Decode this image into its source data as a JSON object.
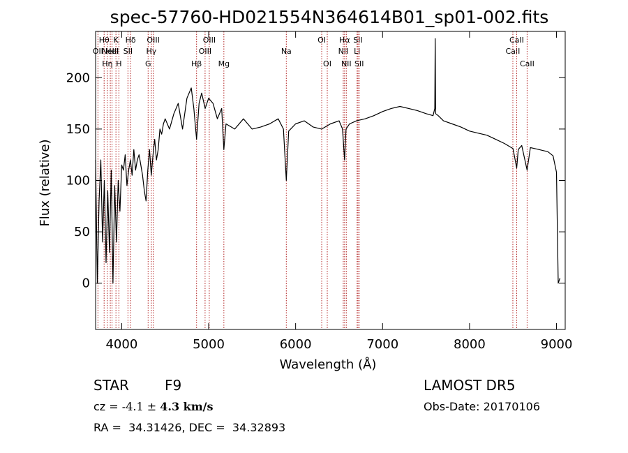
{
  "chart_data": {
    "type": "line",
    "title": "spec-57760-HD021554N364614B01_sp01-002.fits",
    "xlabel": "Wavelength (Å)",
    "ylabel": "Flux (relative)",
    "xlim": [
      3700,
      9100
    ],
    "ylim": [
      -45,
      245
    ],
    "xticks": [
      4000,
      5000,
      6000,
      7000,
      8000,
      9000
    ],
    "yticks": [
      0,
      50,
      100,
      150,
      200
    ],
    "grid": false,
    "line_color": "#000000",
    "marker_color": "#b22222",
    "series": [
      {
        "x": [
          3700,
          3720,
          3740,
          3760,
          3780,
          3800,
          3820,
          3840,
          3860,
          3880,
          3900,
          3920,
          3940,
          3960,
          3980,
          4000,
          4020,
          4040,
          4060,
          4080,
          4100,
          4120,
          4140,
          4160,
          4180,
          4200,
          4220,
          4240,
          4260,
          4280,
          4300,
          4320,
          4340,
          4360,
          4380,
          4400,
          4420,
          4440,
          4460,
          4480,
          4500,
          4550,
          4600,
          4650,
          4700,
          4750,
          4800,
          4830,
          4861,
          4890,
          4920,
          4960,
          5000,
          5050,
          5100,
          5150,
          5175,
          5200,
          5300,
          5400,
          5500,
          5600,
          5700,
          5800,
          5860,
          5893,
          5920,
          6000,
          6100,
          6200,
          6300,
          6400,
          6500,
          6540,
          6563,
          6580,
          6620,
          6700,
          6800,
          6900,
          7000,
          7100,
          7200,
          7300,
          7400,
          7500,
          7580,
          7600,
          7605,
          7610,
          7640,
          7700,
          7800,
          7900,
          8000,
          8100,
          8200,
          8300,
          8400,
          8500,
          8542,
          8560,
          8600,
          8662,
          8700,
          8800,
          8900,
          8960,
          9000,
          9020,
          9040
        ],
        "y": [
          120,
          0,
          80,
          120,
          40,
          100,
          20,
          90,
          30,
          110,
          0,
          95,
          40,
          100,
          70,
          115,
          110,
          125,
          95,
          110,
          120,
          105,
          130,
          110,
          120,
          125,
          115,
          105,
          90,
          80,
          110,
          130,
          105,
          125,
          140,
          120,
          130,
          150,
          145,
          155,
          160,
          150,
          165,
          175,
          150,
          180,
          190,
          170,
          140,
          175,
          185,
          170,
          180,
          175,
          160,
          170,
          130,
          155,
          150,
          160,
          150,
          152,
          155,
          160,
          150,
          100,
          148,
          155,
          158,
          152,
          150,
          155,
          158,
          150,
          120,
          150,
          155,
          158,
          160,
          163,
          167,
          170,
          172,
          170,
          168,
          165,
          163,
          170,
          238,
          165,
          163,
          158,
          155,
          152,
          148,
          146,
          144,
          140,
          136,
          131,
          112,
          130,
          134,
          110,
          132,
          130,
          128,
          124,
          108,
          0,
          5
        ]
      }
    ],
    "line_markers": [
      {
        "x": 3727,
        "label": "OII",
        "row": 2
      },
      {
        "x": 3798,
        "label": "Hθ",
        "row": 1
      },
      {
        "x": 3835,
        "label": "Hη",
        "row": 3
      },
      {
        "x": 3869,
        "label": "NeIII",
        "row": 2
      },
      {
        "x": 3889,
        "label": "HeI",
        "row": 2
      },
      {
        "x": 3934,
        "label": "K",
        "row": 1
      },
      {
        "x": 3968,
        "label": "H",
        "row": 3
      },
      {
        "x": 4072,
        "label": "SII",
        "row": 2
      },
      {
        "x": 4102,
        "label": "Hδ",
        "row": 1
      },
      {
        "x": 4304,
        "label": "G",
        "row": 3
      },
      {
        "x": 4341,
        "label": "Hγ",
        "row": 2
      },
      {
        "x": 4363,
        "label": "OIII",
        "row": 1
      },
      {
        "x": 4861,
        "label": "Hβ",
        "row": 3
      },
      {
        "x": 4959,
        "label": "OIII",
        "row": 2
      },
      {
        "x": 5007,
        "label": "OIII",
        "row": 1
      },
      {
        "x": 5175,
        "label": "Mg",
        "row": 3
      },
      {
        "x": 5893,
        "label": "Na",
        "row": 2
      },
      {
        "x": 6300,
        "label": "OI",
        "row": 1
      },
      {
        "x": 6364,
        "label": "OI",
        "row": 3
      },
      {
        "x": 6548,
        "label": "NII",
        "row": 2
      },
      {
        "x": 6563,
        "label": "Hα",
        "row": 1
      },
      {
        "x": 6583,
        "label": "NII",
        "row": 3
      },
      {
        "x": 6707,
        "label": "Li",
        "row": 2
      },
      {
        "x": 6717,
        "label": "SII",
        "row": 1
      },
      {
        "x": 6731,
        "label": "SII",
        "row": 3
      },
      {
        "x": 8498,
        "label": "CaII",
        "row": 2
      },
      {
        "x": 8542,
        "label": "CaII",
        "row": 1
      },
      {
        "x": 8662,
        "label": "CaII",
        "row": 3
      }
    ]
  },
  "info": {
    "object_type": "STAR",
    "subclass": "F9",
    "survey": "LAMOST DR5",
    "redshift_label": "cz = ",
    "redshift_value": "-4.1",
    "redshift_pm": "±",
    "redshift_error": "4.3 km/s",
    "obs_date_label": "Obs-Date: ",
    "obs_date": "20170106",
    "ra_label": "RA = ",
    "ra": "34.31426",
    "dec_label": ", DEC = ",
    "dec": "34.32893"
  }
}
